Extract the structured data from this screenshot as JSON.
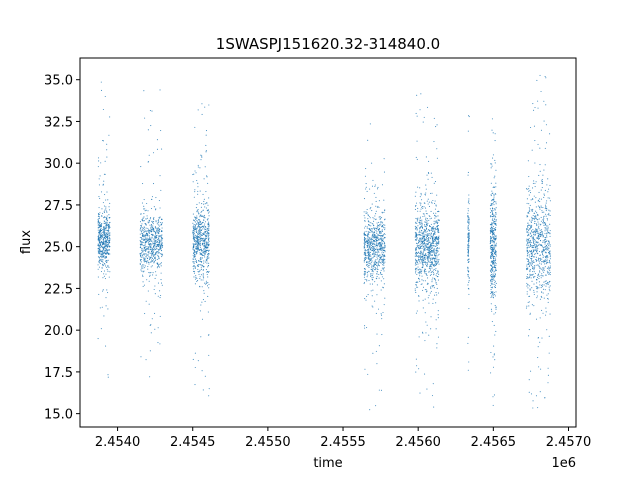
{
  "chart_data": {
    "type": "scatter",
    "title": "1SWASPJ151620.32-314840.0",
    "xlabel": "time",
    "ylabel": "flux",
    "x_offset_label": "1e6",
    "xlim": [
      2.45375,
      2.45705
    ],
    "ylim": [
      14.2,
      36.3
    ],
    "x_ticks": [
      2.454,
      2.4545,
      2.455,
      2.4555,
      2.456,
      2.4565,
      2.457
    ],
    "x_tick_labels": [
      "2.4540",
      "2.4545",
      "2.4550",
      "2.4555",
      "2.4560",
      "2.4565",
      "2.4570"
    ],
    "y_ticks": [
      15.0,
      17.5,
      20.0,
      22.5,
      25.0,
      27.5,
      30.0,
      32.5,
      35.0
    ],
    "y_tick_labels": [
      "15.0",
      "17.5",
      "20.0",
      "22.5",
      "25.0",
      "27.5",
      "30.0",
      "32.5",
      "35.0"
    ],
    "grid": false,
    "legend": "none",
    "point_color": "#1f77b4",
    "series": [
      {
        "clusters": [
          {
            "x_start": 2.45387,
            "x_end": 2.45395,
            "center": 25.4,
            "spread_core": 1.6,
            "y_min": 15.3,
            "y_max": 35.5,
            "density": 520
          },
          {
            "x_start": 2.45415,
            "x_end": 2.4543,
            "center": 25.2,
            "spread_core": 1.6,
            "y_min": 16.3,
            "y_max": 35.6,
            "density": 640
          },
          {
            "x_start": 2.4545,
            "x_end": 2.45461,
            "center": 25.3,
            "spread_core": 1.9,
            "y_min": 15.5,
            "y_max": 35.0,
            "density": 640
          },
          {
            "x_start": 2.45564,
            "x_end": 2.45578,
            "center": 25.0,
            "spread_core": 1.8,
            "y_min": 15.2,
            "y_max": 34.5,
            "density": 700
          },
          {
            "x_start": 2.45598,
            "x_end": 2.45614,
            "center": 25.0,
            "spread_core": 2.1,
            "y_min": 15.2,
            "y_max": 35.4,
            "density": 900
          },
          {
            "x_start": 2.45633,
            "x_end": 2.45634,
            "center": 25.0,
            "spread_core": 2.5,
            "y_min": 17.5,
            "y_max": 33.5,
            "density": 120
          },
          {
            "x_start": 2.45648,
            "x_end": 2.45652,
            "center": 25.0,
            "spread_core": 3.0,
            "y_min": 15.3,
            "y_max": 33.0,
            "density": 420
          },
          {
            "x_start": 2.45672,
            "x_end": 2.45688,
            "center": 25.0,
            "spread_core": 3.0,
            "y_min": 15.3,
            "y_max": 35.4,
            "density": 760
          }
        ]
      }
    ]
  }
}
